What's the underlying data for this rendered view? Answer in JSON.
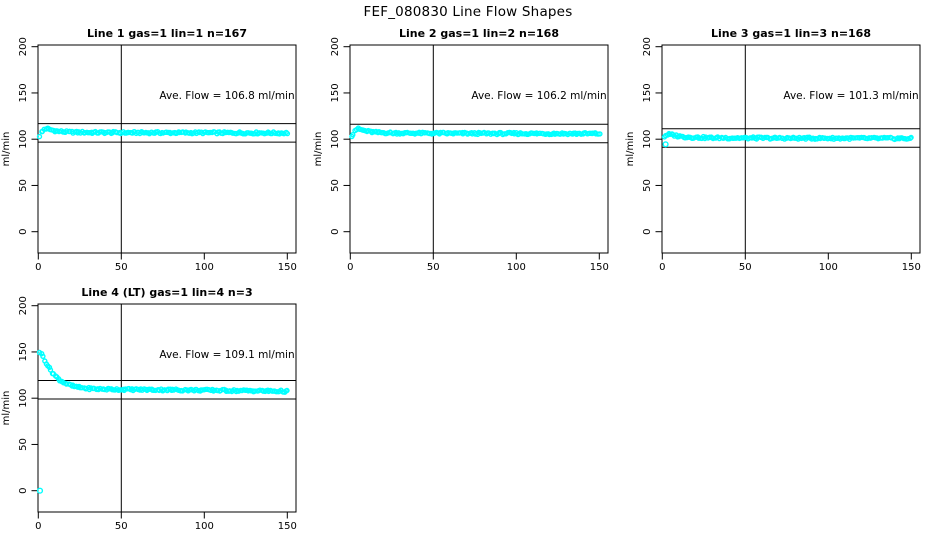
{
  "main_title": "FEF_080830  Line Flow Shapes",
  "colors": {
    "data_point": "#00ffff",
    "reference_line": "#000000",
    "axis": "#000000",
    "background": "#ffffff",
    "text": "#000000"
  },
  "axes": {
    "x_ticks": [
      0,
      50,
      100,
      150
    ],
    "y_ticks": [
      0,
      50,
      100,
      150,
      200
    ],
    "y_label": "ml/min"
  },
  "chart_data": [
    {
      "type": "scatter",
      "title": "Line 1 gas=1 lin=1 n=167",
      "annotation": "Ave. Flow =  106.8  ml/min",
      "ave_flow_ml_min": 106.8,
      "n": 167,
      "upper_ref_line": 116.8,
      "lower_ref_line": 96.8,
      "vline_x": 50,
      "xlim": [
        0,
        150
      ],
      "ylim": [
        0,
        200
      ],
      "curve_points": [
        [
          1,
          103.5
        ],
        [
          2,
          107
        ],
        [
          3,
          110
        ],
        [
          4,
          111.5
        ],
        [
          5,
          111.5
        ],
        [
          7,
          110.5
        ],
        [
          9,
          109.5
        ],
        [
          12,
          108.5
        ],
        [
          16,
          108
        ],
        [
          22,
          107.5
        ],
        [
          30,
          107.3
        ],
        [
          50,
          107.1
        ],
        [
          80,
          107
        ],
        [
          120,
          106.9
        ],
        [
          150,
          106.7
        ]
      ],
      "outlier_points": []
    },
    {
      "type": "scatter",
      "title": "Line 2 gas=1 lin=2 n=168",
      "annotation": "Ave. Flow =  106.2  ml/min",
      "ave_flow_ml_min": 106.2,
      "n": 168,
      "upper_ref_line": 116.2,
      "lower_ref_line": 96.2,
      "vline_x": 50,
      "xlim": [
        0,
        150
      ],
      "ylim": [
        0,
        200
      ],
      "curve_points": [
        [
          1,
          104
        ],
        [
          2,
          107.5
        ],
        [
          3,
          110
        ],
        [
          4,
          111
        ],
        [
          5,
          111
        ],
        [
          7,
          110
        ],
        [
          9,
          109
        ],
        [
          12,
          108
        ],
        [
          16,
          107.3
        ],
        [
          22,
          106.9
        ],
        [
          30,
          106.6
        ],
        [
          50,
          106.4
        ],
        [
          80,
          106.2
        ],
        [
          120,
          106.1
        ],
        [
          150,
          106
        ]
      ],
      "outlier_points": []
    },
    {
      "type": "scatter",
      "title": "Line 3 gas=1 lin=3 n=168",
      "annotation": "Ave. Flow =  101.3  ml/min",
      "ave_flow_ml_min": 101.3,
      "n": 168,
      "upper_ref_line": 111.3,
      "lower_ref_line": 91.3,
      "vline_x": 50,
      "xlim": [
        0,
        150
      ],
      "ylim": [
        0,
        200
      ],
      "curve_points": [
        [
          1,
          102.5
        ],
        [
          2,
          104
        ],
        [
          3,
          105
        ],
        [
          4,
          105.2
        ],
        [
          5,
          105
        ],
        [
          7,
          104.3
        ],
        [
          9,
          103.5
        ],
        [
          12,
          102.8
        ],
        [
          16,
          102.2
        ],
        [
          22,
          101.8
        ],
        [
          30,
          101.5
        ],
        [
          50,
          101.3
        ],
        [
          80,
          101.1
        ],
        [
          120,
          101
        ],
        [
          150,
          100.8
        ]
      ],
      "outlier_points": [
        [
          2,
          94.5
        ]
      ]
    },
    {
      "type": "scatter",
      "title": "Line 4 (LT) gas=1 lin=4 n=3",
      "annotation": "Ave. Flow =  109.1  ml/min",
      "ave_flow_ml_min": 109.1,
      "n": 3,
      "upper_ref_line": 119.1,
      "lower_ref_line": 99.1,
      "vline_x": 50,
      "xlim": [
        0,
        150
      ],
      "ylim": [
        0,
        200
      ],
      "curve_points": [
        [
          1,
          150
        ],
        [
          2,
          147.5
        ],
        [
          3,
          144.5
        ],
        [
          4,
          141
        ],
        [
          5,
          137.5
        ],
        [
          6,
          134.5
        ],
        [
          7,
          131.5
        ],
        [
          8,
          129
        ],
        [
          9,
          126.5
        ],
        [
          10,
          124.5
        ],
        [
          12,
          121
        ],
        [
          14,
          118.5
        ],
        [
          16,
          116.5
        ],
        [
          18,
          114.8
        ],
        [
          20,
          113.5
        ],
        [
          23,
          112.2
        ],
        [
          26,
          111.3
        ],
        [
          30,
          110.5
        ],
        [
          35,
          110
        ],
        [
          40,
          109.8
        ],
        [
          50,
          109.5
        ],
        [
          60,
          109.3
        ],
        [
          80,
          109
        ],
        [
          100,
          108.7
        ],
        [
          120,
          108.2
        ],
        [
          150,
          107.5
        ]
      ],
      "outlier_points": [
        [
          1,
          0
        ]
      ]
    }
  ]
}
